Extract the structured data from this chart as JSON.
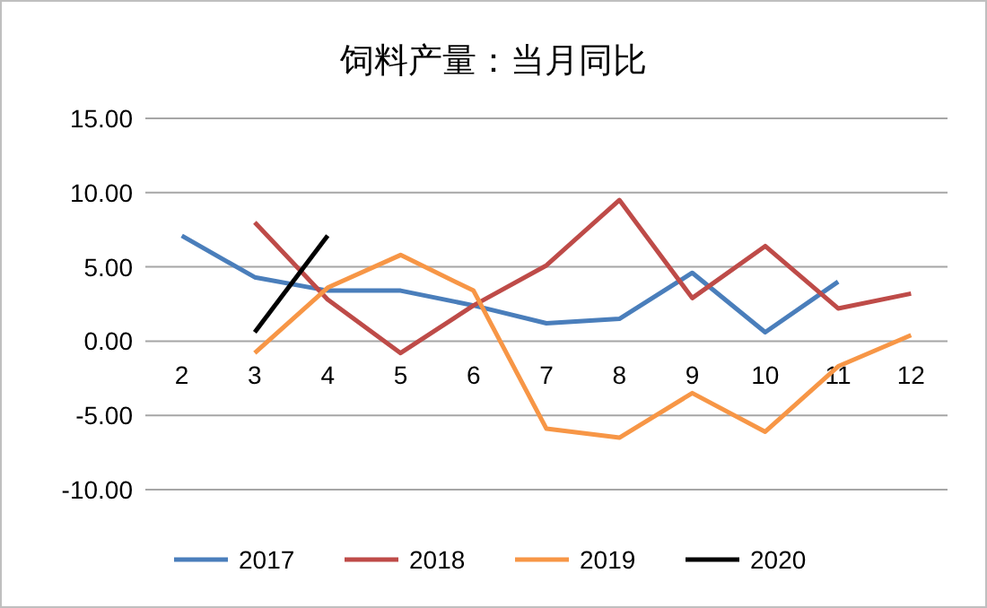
{
  "chart_data": {
    "type": "line",
    "title": "饲料产量：当月同比",
    "categories": [
      "2",
      "3",
      "4",
      "5",
      "6",
      "7",
      "8",
      "9",
      "10",
      "11",
      "12"
    ],
    "series": [
      {
        "name": "2017",
        "color": "#4a7ebb",
        "values": [
          7.1,
          4.3,
          3.4,
          3.4,
          2.4,
          1.2,
          1.5,
          4.6,
          0.6,
          4.0,
          null
        ]
      },
      {
        "name": "2018",
        "color": "#be4b48",
        "values": [
          null,
          8.0,
          2.8,
          -0.8,
          2.4,
          5.1,
          9.5,
          2.9,
          6.4,
          2.2,
          3.2
        ]
      },
      {
        "name": "2019",
        "color": "#f79646",
        "values": [
          null,
          -0.8,
          3.6,
          5.8,
          3.4,
          -5.9,
          -6.5,
          -3.5,
          -6.1,
          -1.7,
          0.4
        ]
      },
      {
        "name": "2020",
        "color": "#000000",
        "values": [
          null,
          0.6,
          7.1,
          null,
          null,
          null,
          null,
          null,
          null,
          null,
          null
        ]
      }
    ],
    "ylim": [
      -10,
      15
    ],
    "yticks": [
      {
        "value": -10,
        "label": "-10.00"
      },
      {
        "value": -5,
        "label": "-5.00"
      },
      {
        "value": 0,
        "label": "0.00"
      },
      {
        "value": 5,
        "label": "5.00"
      },
      {
        "value": 10,
        "label": "10.00"
      },
      {
        "value": 15,
        "label": "15.00"
      }
    ],
    "grid": "y",
    "legend": "bottom"
  }
}
